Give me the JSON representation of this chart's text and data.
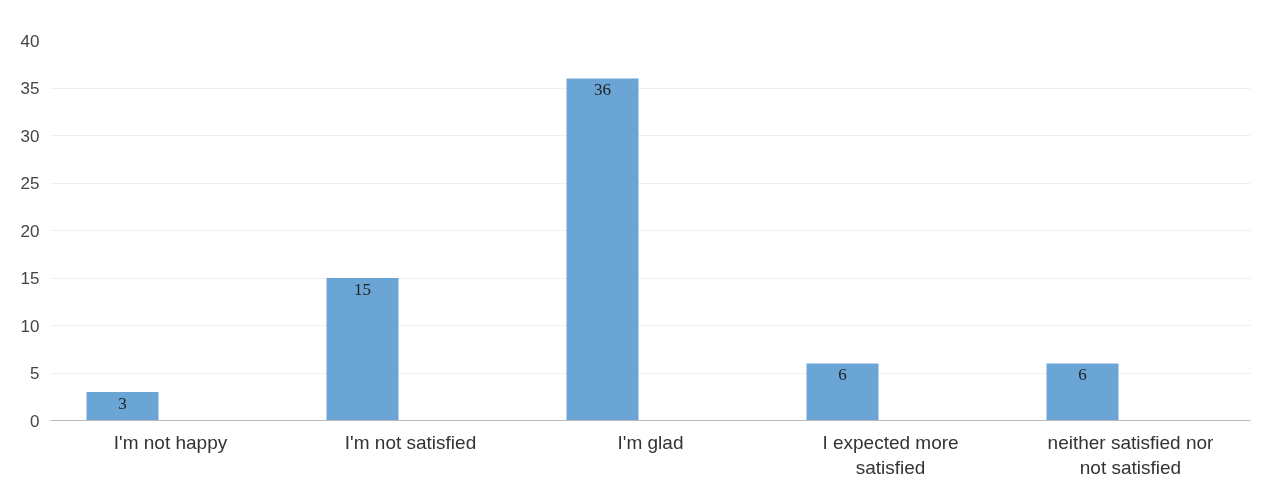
{
  "chart_data": {
    "type": "bar",
    "categories": [
      "I'm not happy",
      "I'm not satisfied",
      "I'm glad",
      "I expected more satisfied",
      "neither satisfied nor not satisfied"
    ],
    "values": [
      3,
      15,
      36,
      6,
      6
    ],
    "color": "#6aa5d6",
    "ylim": [
      0,
      40
    ],
    "yticks": [
      0,
      5,
      10,
      15,
      20,
      25,
      30,
      35,
      40
    ],
    "grid": "y",
    "data_labels": true
  }
}
